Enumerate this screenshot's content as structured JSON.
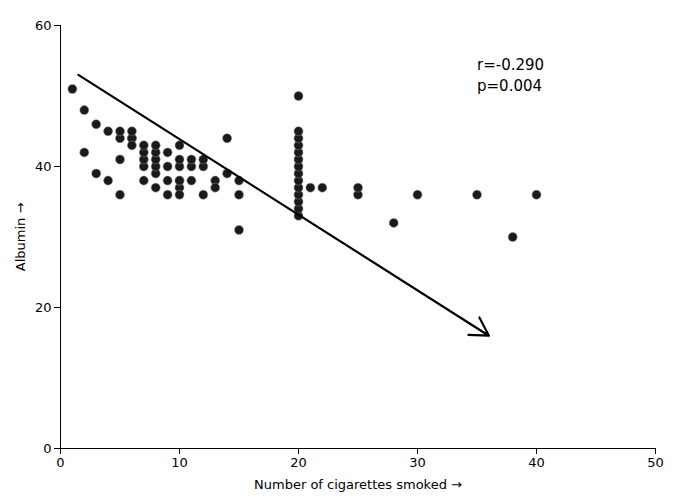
{
  "chart_data": {
    "type": "scatter",
    "x": [
      1,
      2,
      3,
      4,
      5,
      5,
      6,
      6,
      6,
      7,
      7,
      7,
      7,
      8,
      8,
      8,
      8,
      8,
      9,
      9,
      9,
      10,
      10,
      10,
      10,
      10,
      11,
      11,
      12,
      12,
      13,
      14,
      14,
      15,
      15,
      2,
      3,
      4,
      5,
      5,
      6,
      7,
      8,
      9,
      10,
      10,
      11,
      12,
      13,
      15,
      20,
      20,
      20,
      20,
      20,
      20,
      20,
      20,
      20,
      20,
      20,
      20,
      20,
      20,
      21,
      22,
      25,
      25,
      28,
      30,
      35,
      38,
      40
    ],
    "values": [
      51,
      48,
      46,
      45,
      44,
      45,
      44,
      44,
      45,
      40,
      41,
      42,
      43,
      39,
      40,
      41,
      42,
      43,
      38,
      40,
      42,
      37,
      38,
      40,
      41,
      43,
      38,
      40,
      40,
      41,
      38,
      39,
      44,
      36,
      38,
      42,
      39,
      38,
      41,
      36,
      43,
      38,
      37,
      36,
      36,
      38,
      41,
      36,
      37,
      31,
      33,
      34,
      35,
      36,
      37,
      38,
      39,
      40,
      41,
      42,
      43,
      44,
      45,
      50,
      37,
      37,
      36,
      37,
      32,
      36,
      36,
      30,
      36
    ],
    "color": "#1a1a1a",
    "arrow": {
      "x1": 1.5,
      "y1": 53,
      "x2": 36.0,
      "y2": 16.0
    },
    "annotation": "r=-0.290\np=0.004",
    "xlabel": "Number of cigarettes smoked",
    "ylabel": "Albumin",
    "xlim": [
      0,
      50
    ],
    "ylim": [
      0,
      60
    ],
    "xticks": [
      0,
      10,
      20,
      30,
      40,
      50
    ],
    "yticks": [
      0,
      20,
      40,
      60
    ],
    "grid": false
  }
}
